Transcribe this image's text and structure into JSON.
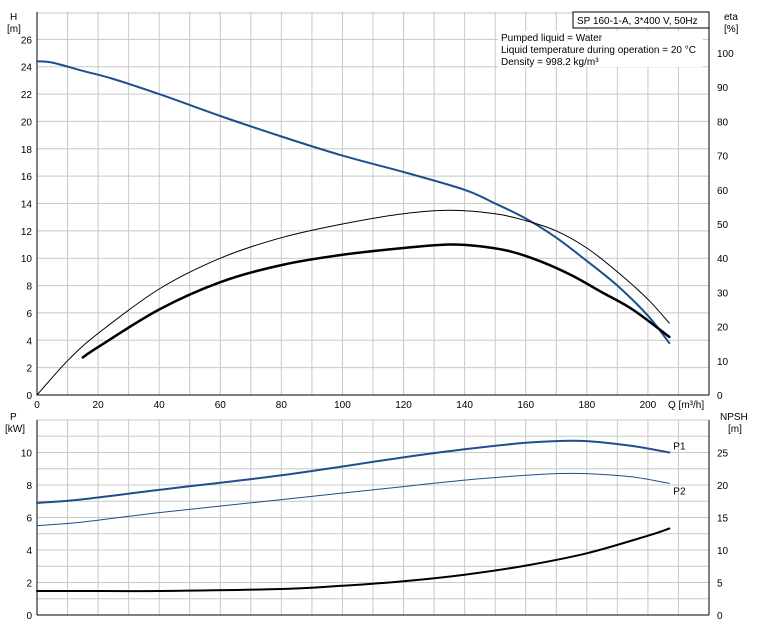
{
  "chart_data": [
    {
      "type": "line",
      "panel": "head-efficiency",
      "title": "SP 160-1-A, 3*400 V, 50Hz",
      "annotations": [
        "Pumped liquid = Water",
        "Liquid temperature during operation = 20 °C",
        "Density = 998.2 kg/m³"
      ],
      "xlabel": "Q [m³/h]",
      "ylabel": "H",
      "ylabel_unit": "[m]",
      "y2label": "eta",
      "y2label_unit": "[%]",
      "xlim": [
        0,
        220
      ],
      "ylim": [
        0,
        28
      ],
      "y2lim": [
        0,
        112
      ],
      "x_ticks": [
        0,
        20,
        40,
        60,
        80,
        100,
        120,
        140,
        160,
        180,
        200
      ],
      "y_ticks": [
        0,
        2,
        4,
        6,
        8,
        10,
        12,
        14,
        16,
        18,
        20,
        22,
        24,
        26
      ],
      "y2_ticks": [
        0,
        10,
        20,
        30,
        40,
        50,
        60,
        70,
        80,
        90,
        100
      ],
      "grid": true,
      "series": [
        {
          "key": "H",
          "axis": "left",
          "color": "#1f4e8c",
          "width": 2,
          "x": [
            0,
            5,
            15,
            25,
            40,
            60,
            80,
            100,
            120,
            140,
            150,
            160,
            170,
            180,
            190,
            200,
            207
          ],
          "y": [
            24.4,
            24.3,
            23.7,
            23.1,
            22.0,
            20.4,
            18.9,
            17.5,
            16.3,
            15.0,
            14.0,
            12.9,
            11.5,
            9.8,
            8.0,
            5.8,
            3.8
          ]
        },
        {
          "key": "eta-thin",
          "axis": "right",
          "color": "#000000",
          "width": 1,
          "x": [
            0,
            10,
            20,
            40,
            60,
            80,
            100,
            120,
            135,
            150,
            160,
            170,
            180,
            190,
            200,
            207
          ],
          "y": [
            0,
            10,
            18,
            31,
            40,
            46,
            50,
            53,
            54,
            53,
            51,
            48,
            43,
            36,
            28,
            21
          ]
        },
        {
          "key": "eta-bold",
          "axis": "right",
          "color": "#000000",
          "width": 2.5,
          "x": [
            15,
            20,
            40,
            60,
            80,
            100,
            120,
            135,
            145,
            155,
            165,
            175,
            185,
            195,
            207
          ],
          "y": [
            11,
            14,
            25,
            33,
            38,
            41,
            43,
            44,
            43.5,
            42,
            39,
            35,
            30,
            25,
            17
          ]
        }
      ]
    },
    {
      "type": "line",
      "panel": "power-npsh",
      "ylabel": "P",
      "ylabel_unit": "[kW]",
      "y2label": "NPSH",
      "y2label_unit": "[m]",
      "xlim": [
        0,
        220
      ],
      "ylim": [
        0,
        12
      ],
      "y2lim": [
        0,
        30
      ],
      "y_ticks": [
        0,
        2,
        4,
        6,
        8,
        10
      ],
      "y2_ticks": [
        0,
        5,
        10,
        15,
        20,
        25
      ],
      "grid": true,
      "series": [
        {
          "key": "P1",
          "name": "P1",
          "axis": "left",
          "color": "#1f4e8c",
          "width": 2,
          "x": [
            0,
            14,
            40,
            80,
            120,
            140,
            160,
            170,
            180,
            195,
            207
          ],
          "y": [
            6.9,
            7.1,
            7.7,
            8.6,
            9.7,
            10.2,
            10.6,
            10.7,
            10.7,
            10.4,
            10.0
          ],
          "label_style": "strong"
        },
        {
          "key": "P2",
          "name": "P2",
          "axis": "left",
          "color": "#1f4e8c",
          "width": 1,
          "x": [
            0,
            14,
            40,
            80,
            120,
            140,
            160,
            170,
            180,
            195,
            207
          ],
          "y": [
            5.5,
            5.7,
            6.3,
            7.1,
            7.9,
            8.3,
            8.6,
            8.7,
            8.7,
            8.5,
            8.1
          ]
        },
        {
          "key": "NPSH",
          "axis": "right",
          "color": "#000000",
          "width": 2,
          "x": [
            0,
            14,
            40,
            80,
            100,
            120,
            140,
            160,
            180,
            200,
            207
          ],
          "y": [
            3.7,
            3.7,
            3.7,
            4.0,
            4.5,
            5.2,
            6.2,
            7.6,
            9.5,
            12.2,
            13.3
          ]
        }
      ]
    }
  ]
}
